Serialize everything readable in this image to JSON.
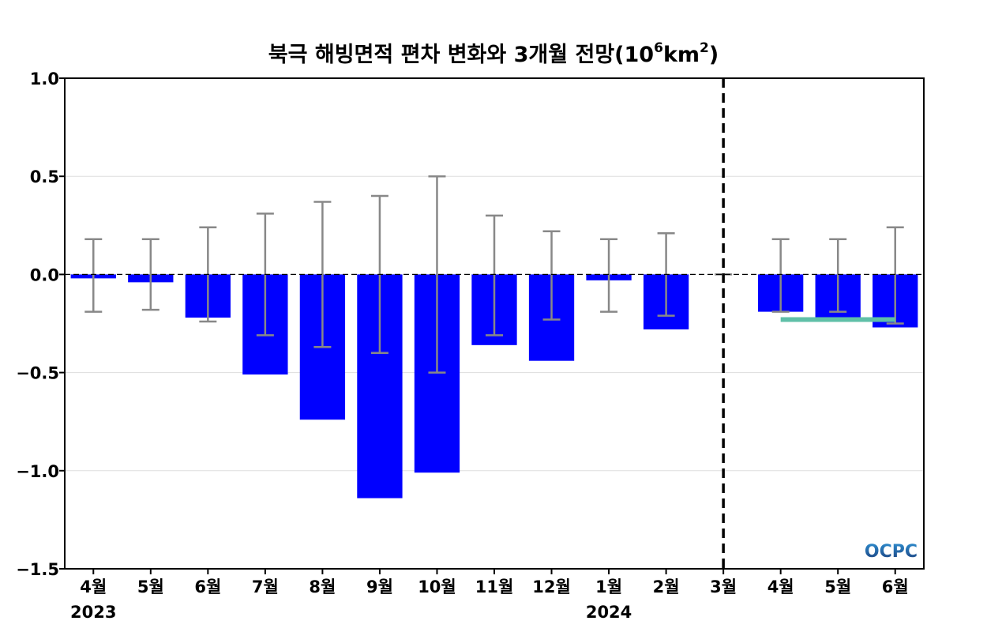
{
  "chart_data": {
    "type": "bar",
    "title_prefix": "북극 해빙면적 편차 변화와 3개월 전망(10",
    "title_sup1": "6",
    "title_mid": "km",
    "title_sup2": "2",
    "title_suffix": ")",
    "categories": [
      "4월",
      "5월",
      "6월",
      "7월",
      "8월",
      "9월",
      "10월",
      "11월",
      "12월",
      "1월",
      "2월",
      "3월",
      "4월",
      "5월",
      "6월"
    ],
    "year_labels": [
      {
        "category_index": 0,
        "text": "2023"
      },
      {
        "category_index": 9,
        "text": "2024"
      }
    ],
    "values": [
      -0.02,
      -0.04,
      -0.22,
      -0.51,
      -0.74,
      -1.14,
      -1.01,
      -0.36,
      -0.44,
      -0.03,
      -0.28,
      0.0,
      -0.19,
      -0.22,
      -0.27
    ],
    "error_bars": [
      [
        -0.19,
        0.18
      ],
      [
        -0.18,
        0.18
      ],
      [
        -0.24,
        0.24
      ],
      [
        -0.31,
        0.31
      ],
      [
        -0.37,
        0.37
      ],
      [
        -0.4,
        0.4
      ],
      [
        -0.5,
        0.5
      ],
      [
        -0.31,
        0.3
      ],
      [
        -0.23,
        0.22
      ],
      [
        -0.19,
        0.18
      ],
      [
        -0.21,
        0.21
      ],
      null,
      [
        -0.19,
        0.18
      ],
      [
        -0.19,
        0.18
      ],
      [
        -0.25,
        0.24
      ]
    ],
    "forecast_mean_line": {
      "from_index": 12,
      "to_index": 14,
      "value": -0.23
    },
    "divider_index": 11,
    "ylim": [
      -1.5,
      1.0
    ],
    "yticks": [
      1.0,
      0.5,
      0.0,
      -0.5,
      -1.0,
      -1.5
    ],
    "ytick_labels": [
      "1.0",
      "0.5",
      "0.0",
      "−0.5",
      "−1.0",
      "−1.5"
    ],
    "grid": true,
    "colors": {
      "bar": "#0000ff",
      "error_bar": "#888888",
      "forecast_line": "#5fbfa8",
      "grid": "#dddddd",
      "zero_line": "#000000"
    }
  },
  "logo": {
    "text": "OCPC",
    "color_top": "#2f8fd0",
    "color_bottom": "#1a3c7a"
  }
}
